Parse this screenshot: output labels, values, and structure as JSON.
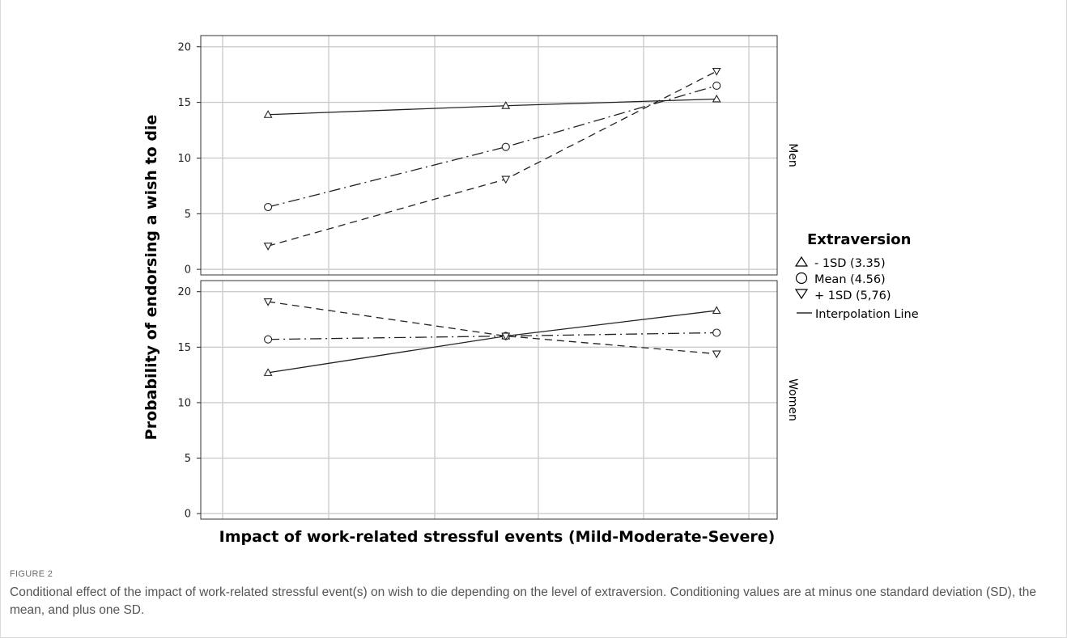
{
  "figure": {
    "label": "FIGURE 2",
    "caption": "Conditional effect of the impact of work-related stressful event(s) on wish to die depending on the level of extraversion. Conditioning values are at minus one standard deviation (SD), the mean, and plus one SD."
  },
  "chart_data": {
    "type": "line",
    "xlabel": "Impact of work-related stressful events (Mild-Moderate-Severe)",
    "ylabel": "Probability of endorsing a wish to die",
    "x": [
      1,
      2,
      3
    ],
    "xlim": [
      0.7,
      3.27
    ],
    "ylim": [
      -0.5,
      21
    ],
    "yticks": [
      0,
      5,
      10,
      15,
      20
    ],
    "grid": true,
    "legend": {
      "title": "Extraversion",
      "placement": "right",
      "entries": [
        {
          "marker": "triangle-up",
          "glyph": "△",
          "label": "- 1SD (3.35)"
        },
        {
          "marker": "circle",
          "glyph": "○",
          "label": "Mean (4.56)"
        },
        {
          "marker": "triangle-down",
          "glyph": "▽",
          "label": "+ 1SD (5,76)"
        },
        {
          "marker": "line",
          "glyph": "",
          "label": "Interpolation Line"
        }
      ]
    },
    "panels": [
      {
        "name": "Men",
        "series": [
          {
            "name": "- 1SD (3.35)",
            "marker": "triangle-up",
            "dash": "solid",
            "x": [
              1,
              2.06,
              3
            ],
            "values": [
              13.9,
              14.7,
              15.3
            ]
          },
          {
            "name": "Mean (4.56)",
            "marker": "circle",
            "dash": "dashdot",
            "x": [
              1,
              2.06,
              3
            ],
            "values": [
              5.6,
              11.0,
              16.5
            ]
          },
          {
            "name": "+ 1SD (5,76)",
            "marker": "triangle-down",
            "dash": "dashed",
            "x": [
              1,
              2.06,
              3
            ],
            "values": [
              2.1,
              8.1,
              17.8
            ]
          }
        ]
      },
      {
        "name": "Women",
        "series": [
          {
            "name": "- 1SD (3.35)",
            "marker": "triangle-up",
            "dash": "solid",
            "x": [
              1,
              2.06,
              3
            ],
            "values": [
              12.7,
              16.0,
              18.3
            ]
          },
          {
            "name": "Mean (4.56)",
            "marker": "circle",
            "dash": "dashdot",
            "x": [
              1,
              2.06,
              3
            ],
            "values": [
              15.7,
              16.0,
              16.3
            ]
          },
          {
            "name": "+ 1SD (5,76)",
            "marker": "triangle-down",
            "dash": "dashed",
            "x": [
              1,
              2.06,
              3
            ],
            "values": [
              19.1,
              16.0,
              14.4
            ]
          }
        ]
      }
    ]
  }
}
